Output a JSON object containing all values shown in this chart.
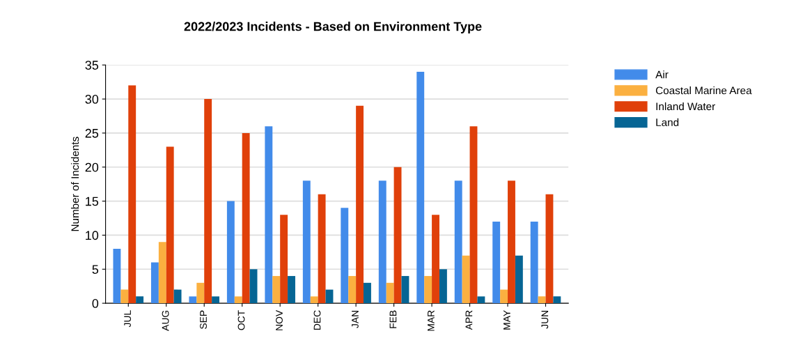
{
  "chart_data": {
    "type": "bar",
    "title": "2022/2023 Incidents - Based on Environment Type",
    "ylabel": "Number of Incidents",
    "categories": [
      "JUL",
      "AUG",
      "SEP",
      "OCT",
      "NOV",
      "DEC",
      "JAN",
      "FEB",
      "MAR",
      "APR",
      "MAY",
      "JUN"
    ],
    "series": [
      {
        "name": "Air",
        "color": "#428bea",
        "values": [
          8,
          6,
          1,
          15,
          26,
          18,
          14,
          18,
          34,
          18,
          12,
          12
        ]
      },
      {
        "name": "Coastal Marine Area",
        "color": "#fbb040",
        "values": [
          2,
          9,
          3,
          1,
          4,
          1,
          4,
          3,
          4,
          7,
          2,
          1
        ]
      },
      {
        "name": "Inland Water",
        "color": "#e0400a",
        "values": [
          32,
          23,
          30,
          25,
          13,
          16,
          29,
          20,
          13,
          26,
          18,
          16
        ]
      },
      {
        "name": "Land",
        "color": "#066594",
        "values": [
          1,
          2,
          1,
          5,
          4,
          2,
          3,
          4,
          5,
          1,
          7,
          1
        ]
      }
    ],
    "ylim": [
      0,
      35
    ],
    "yticks": [
      0,
      5,
      10,
      15,
      20,
      25,
      30,
      35
    ],
    "grid": "y",
    "legend": "top right"
  }
}
